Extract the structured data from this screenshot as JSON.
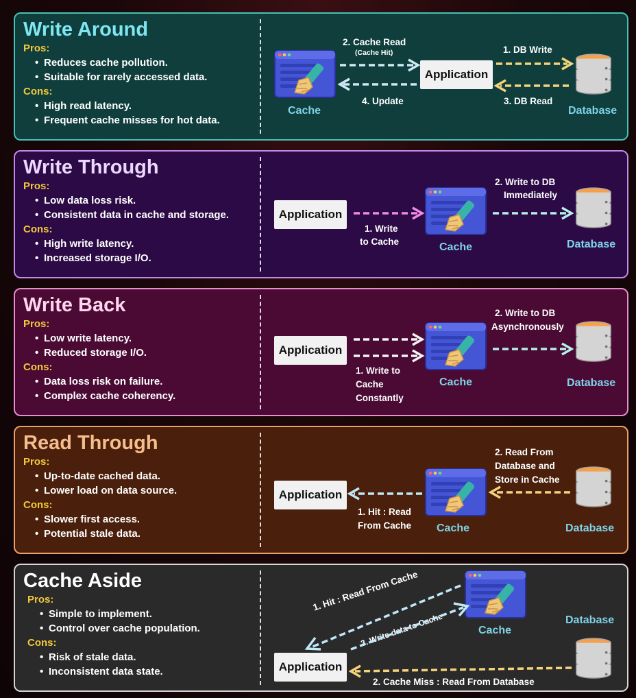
{
  "labels": {
    "cache": "Cache",
    "database": "Database",
    "application": "Application",
    "pros": "Pros:",
    "cons": "Cons:"
  },
  "panels": [
    {
      "title": "Write Around",
      "pros": [
        "Reduces cache pollution.",
        "Suitable for rarely accessed data."
      ],
      "cons": [
        "High read latency.",
        "Frequent cache misses for hot data."
      ],
      "notes": {
        "cache_read": "2. Cache Read",
        "cache_hit": "(Cache Hit)",
        "db_write": "1. DB Write",
        "update": "4. Update",
        "db_read": "3. DB Read"
      }
    },
    {
      "title": "Write Through",
      "pros": [
        "Low data loss risk.",
        "Consistent data in cache and storage."
      ],
      "cons": [
        "High write latency.",
        "Increased storage I/O."
      ],
      "notes": {
        "write_cache_1": "1. Write",
        "write_cache_2": "to Cache",
        "write_db_1": "2. Write to DB",
        "write_db_2": "Immediately"
      }
    },
    {
      "title": "Write Back",
      "pros": [
        "Low write latency.",
        "Reduced storage I/O."
      ],
      "cons": [
        "Data loss risk on failure.",
        "Complex cache coherency."
      ],
      "notes": {
        "write_cache_1": "1. Write to",
        "write_cache_2": "Cache",
        "write_cache_3": "Constantly",
        "write_db_1": "2. Write to DB",
        "write_db_2": "Asynchronously"
      }
    },
    {
      "title": "Read Through",
      "pros": [
        "Up-to-date cached data.",
        "Lower load on data source."
      ],
      "cons": [
        "Slower first access.",
        "Potential stale data."
      ],
      "notes": {
        "hit_1": "1. Hit : Read",
        "hit_2": "From Cache",
        "read_db_1": "2. Read From",
        "read_db_2": "Database and",
        "read_db_3": "Store in Cache"
      }
    },
    {
      "title": "Cache Aside",
      "pros": [
        "Simple to implement.",
        "Control over cache population."
      ],
      "cons": [
        "Risk of stale data.",
        "Inconsistent data state."
      ],
      "notes": {
        "hit": "1. Hit : Read From Cache",
        "write_cache": "3. Write data to Cache",
        "miss": "2. Cache Miss : Read From Database"
      }
    }
  ],
  "colors": {
    "write_around": "#45c2b4",
    "write_through": "#c38be8",
    "write_back": "#e58fcd",
    "read_through": "#e9a36a",
    "cache_aside": "#d6d6d6",
    "cache_label": "#7fd3e8",
    "cons_label": "#f3c93a"
  },
  "icons": [
    "cache-icon",
    "database-icon"
  ]
}
